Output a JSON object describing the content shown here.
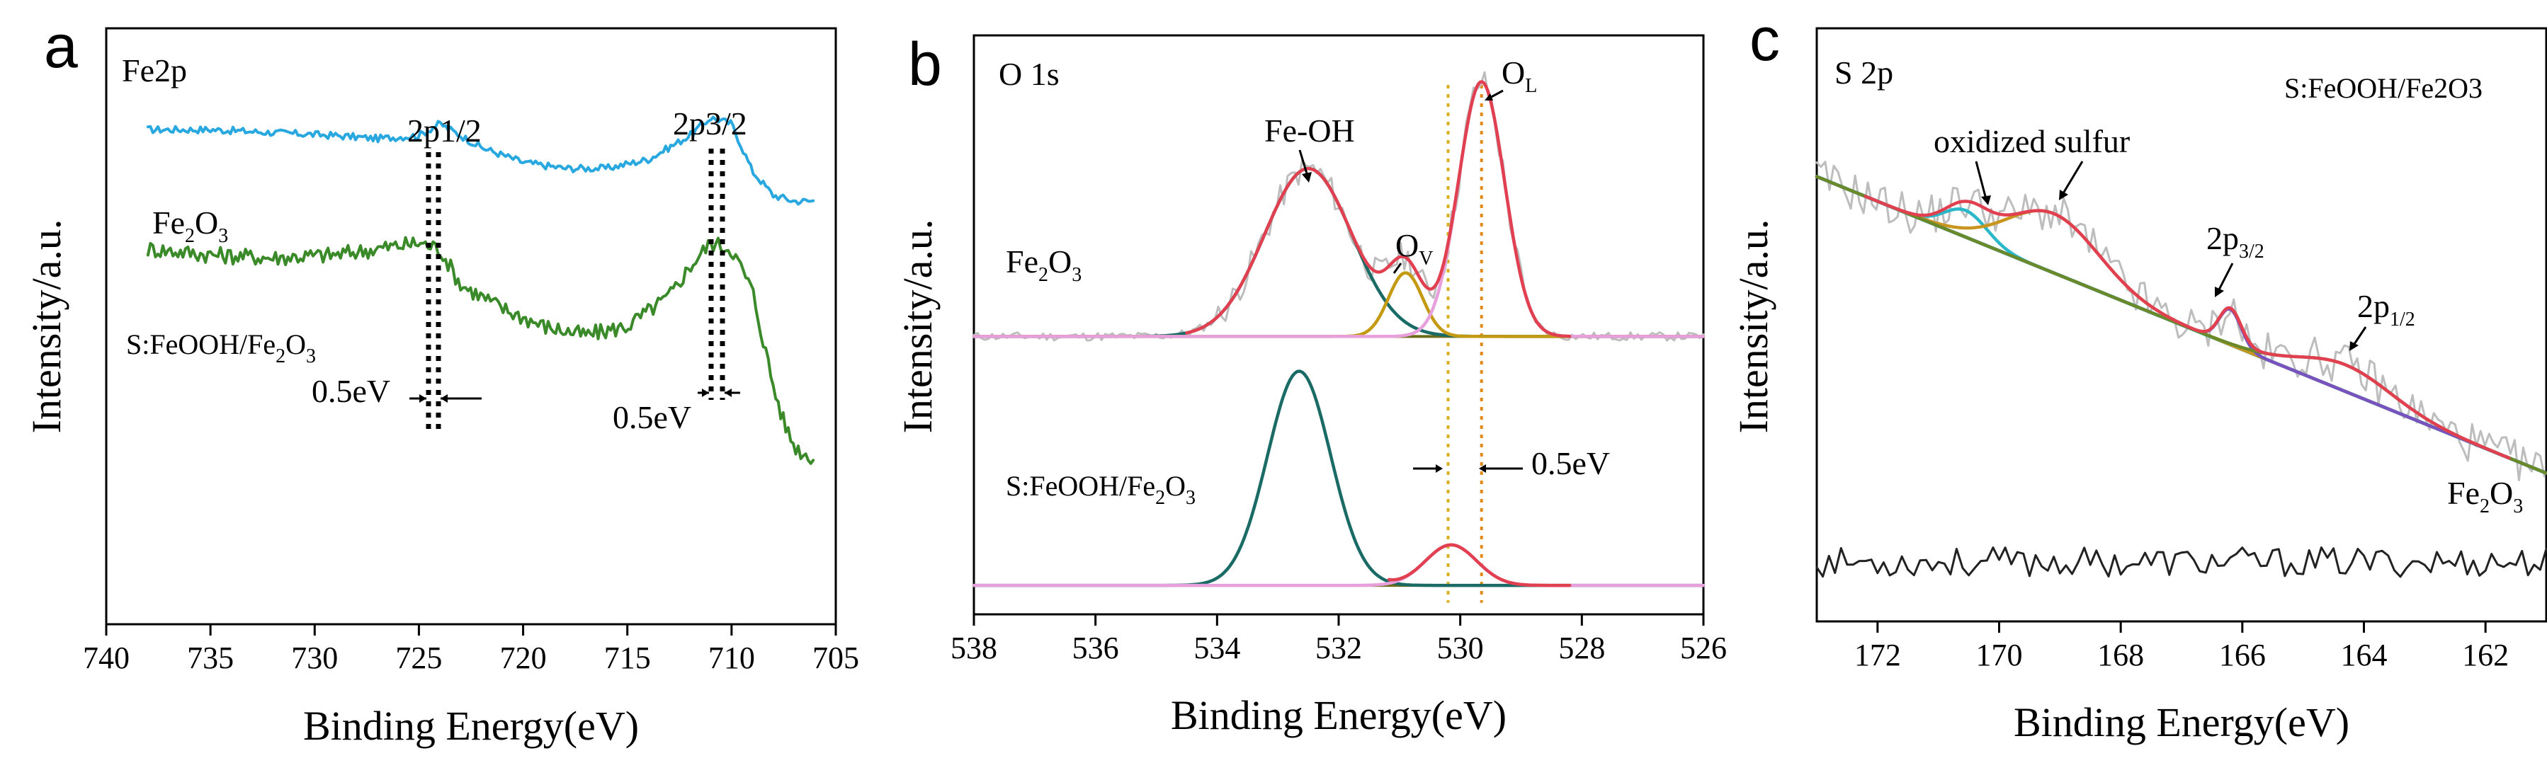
{
  "chart_data": [
    {
      "type": "line",
      "panel": "a",
      "title": "Fe2p",
      "xlabel": "Binding Energy(eV)",
      "ylabel": "Intensity/a.u.",
      "xlim": [
        740,
        705
      ],
      "ylim": [
        0,
        100
      ],
      "xticks": [
        "740",
        "735",
        "730",
        "725",
        "720",
        "715",
        "710",
        "705"
      ],
      "series": [
        {
          "name": "Fe2O3",
          "color": "#29a8e0",
          "noise": 0.6,
          "x": [
            738,
            735,
            732,
            729,
            727,
            725,
            724,
            722,
            720,
            718,
            716,
            714,
            712,
            711,
            710,
            709,
            708,
            707,
            706
          ],
          "y": [
            83,
            83,
            82.5,
            82,
            81.5,
            82,
            84,
            80,
            77.5,
            76.5,
            76.5,
            78,
            82,
            85,
            84,
            76,
            72,
            71,
            71
          ]
        },
        {
          "name": "S:FeOOH/Fe2O3",
          "color": "#3a8a2a",
          "noise": 1.4,
          "x": [
            738,
            735,
            732,
            729,
            727,
            725,
            724,
            723,
            721,
            719,
            717,
            715,
            713,
            712,
            711,
            710,
            709,
            708.5,
            708,
            707.5,
            707,
            706.5,
            706
          ],
          "y": [
            63,
            62,
            61.5,
            62,
            63,
            64,
            63,
            57,
            53,
            50,
            48.5,
            50,
            55,
            60,
            64,
            63,
            56,
            48,
            40,
            34,
            30,
            28.5,
            28
          ]
        }
      ],
      "annotations": [
        {
          "text": "2p1/2",
          "x": 724.0,
          "y": 92
        },
        {
          "text": "2p3/2",
          "x": 710.5,
          "y": 92
        },
        {
          "text": "Fe",
          "sub": "2",
          "text2": "O",
          "sub2": "3"
        },
        {
          "text": "S:FeOOH/Fe",
          "sub": "2",
          "text2": "O",
          "sub2": "3"
        },
        {
          "text": "0.5eV",
          "x": 724,
          "y": 32
        },
        {
          "text": "0.5eV",
          "x": 710.5,
          "y": 28
        }
      ]
    },
    {
      "type": "line",
      "panel": "b",
      "title": "O 1s",
      "xlabel": "Binding Energy(eV)",
      "ylabel": "Intensity/a.u.",
      "xlim": [
        538,
        526
      ],
      "ylim": [
        0,
        100
      ],
      "xticks": [
        "538",
        "536",
        "534",
        "532",
        "530",
        "528",
        "526"
      ],
      "upper": {
        "label_base": "Fe",
        "label_sub1": "2",
        "label_o": "O",
        "label_sub2": "3",
        "baseline": 48,
        "peaks": [
          {
            "name": "Fe-OH",
            "center": 532.5,
            "sigma": 0.72,
            "amp": 29,
            "color": "#1a6b66"
          },
          {
            "name": "O_V",
            "center": 530.9,
            "sigma": 0.28,
            "amp": 11,
            "color": "#c49a12"
          },
          {
            "name": "O_L",
            "center": 529.65,
            "sigma": 0.38,
            "amp": 44,
            "color": "#e8a0dc"
          }
        ]
      },
      "lower": {
        "label_base": "S:FeOOH/Fe",
        "label_sub1": "2",
        "label_o": "O",
        "label_sub2": "3",
        "baseline": 5,
        "peaks": [
          {
            "name": "Fe-OH",
            "center": 532.65,
            "sigma": 0.52,
            "amp": 37,
            "color": "#1a6b66"
          },
          {
            "name": "O_L",
            "center": 530.15,
            "sigma": 0.42,
            "amp": 7,
            "color": "#e8a0dc"
          }
        ]
      },
      "envelope_color": "#e04050",
      "raw_color": "#bdbdbd",
      "baseline_color": "#6b6b1a",
      "guide_lines": [
        530.2,
        529.65
      ],
      "annotations": {
        "fe_oh": "Fe-OH",
        "ov_main": "O",
        "ov_sub": "V",
        "ol_main": "O",
        "ol_sub": "L",
        "shift": "0.5eV"
      }
    },
    {
      "type": "line",
      "panel": "c",
      "title": "S 2p",
      "legend": "S:FeOOH/Fe2O3",
      "xlabel": "Binding Energy(eV)",
      "ylabel": "Intensity/a.u.",
      "xlim": [
        173,
        161
      ],
      "ylim": [
        0,
        100
      ],
      "xticks": [
        "172",
        "170",
        "168",
        "166",
        "164",
        "162"
      ],
      "background": {
        "x0": 173,
        "y0": 75,
        "x1": 161,
        "y1": 25,
        "color": "#2ab8c8"
      },
      "peaks": [
        {
          "center": 170.55,
          "sigma": 0.35,
          "amp": 4.5,
          "color": "#2ab8c8"
        },
        {
          "center": 169.1,
          "sigma": 0.75,
          "amp": 10,
          "color": "#c8961e"
        },
        {
          "center": 166.2,
          "sigma": 0.18,
          "amp": 6,
          "color": "#7a52c0"
        },
        {
          "center": 164.3,
          "sigma": 0.75,
          "amp": 4.5,
          "color": "#6a8a2a"
        }
      ],
      "envelope_color": "#e04050",
      "raw_color": "#bdbdbd",
      "fe2o3_line": {
        "y": 10,
        "color": "#222222"
      },
      "annotations": {
        "oxidized": "oxidized sulfur",
        "p32_main": "2p",
        "p32_sub": "3/2",
        "p12_main": "2p",
        "p12_sub": "1/2",
        "fe_main": "Fe",
        "fe_sub1": "2",
        "fe_o": "O",
        "fe_sub2": "3"
      }
    }
  ],
  "panel_labels": [
    "a",
    "b",
    "c"
  ]
}
